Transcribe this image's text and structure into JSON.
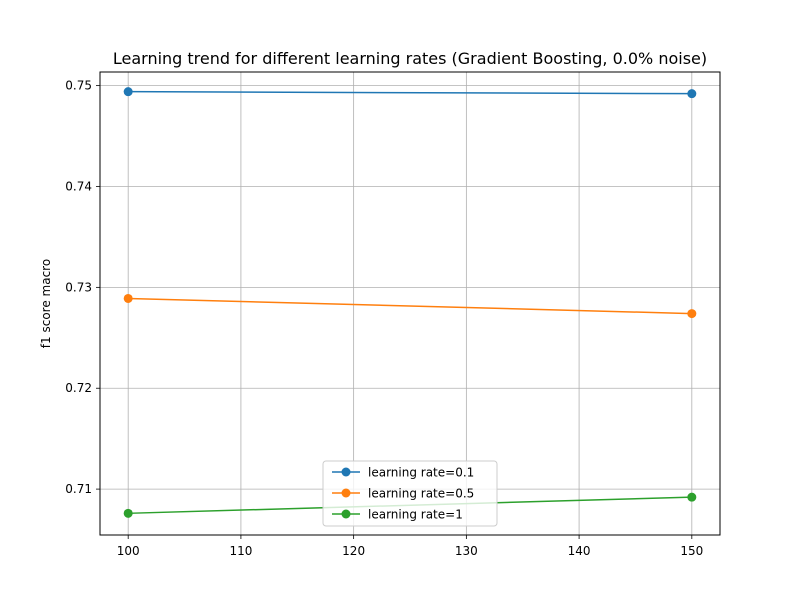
{
  "chart_data": {
    "type": "line",
    "title": "Learning trend for different learning rates (Gradient Boosting, 0.0% noise)",
    "xlabel": "",
    "ylabel": "f1 score macro",
    "x": [
      100,
      150
    ],
    "xlim": [
      97.5,
      152.5
    ],
    "ylim": [
      0.70545,
      0.75135
    ],
    "xticks": [
      100,
      110,
      120,
      130,
      140,
      150
    ],
    "yticks": [
      0.71,
      0.72,
      0.73,
      0.74,
      0.75
    ],
    "xtick_labels": [
      "100",
      "110",
      "120",
      "130",
      "140",
      "150"
    ],
    "ytick_labels": [
      "0.71",
      "0.72",
      "0.73",
      "0.74",
      "0.75"
    ],
    "grid": true,
    "legend_position": "lower-center",
    "series": [
      {
        "name": "learning rate=0.1",
        "values": [
          0.7494,
          0.7492
        ],
        "color": "#1f77b4"
      },
      {
        "name": "learning rate=0.5",
        "values": [
          0.7289,
          0.7274
        ],
        "color": "#ff7f0e"
      },
      {
        "name": "learning rate=1",
        "values": [
          0.7076,
          0.7092
        ],
        "color": "#2ca02c"
      }
    ]
  }
}
